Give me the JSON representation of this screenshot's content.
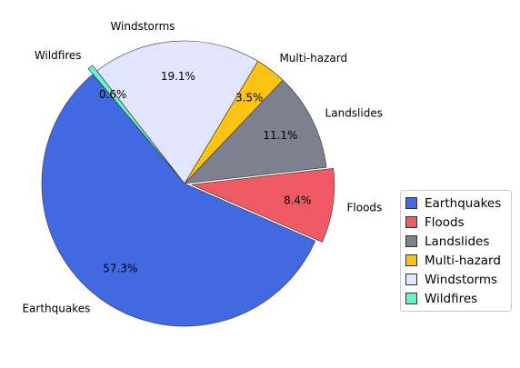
{
  "chart_data": {
    "type": "pie",
    "start_angle_deg": 130,
    "direction": "counterclockwise",
    "slices": [
      {
        "label": "Earthquakes",
        "value": 57.3,
        "pct_label": "57.3%",
        "color": "#4169E1",
        "explode": 0
      },
      {
        "label": "Floods",
        "value": 8.4,
        "pct_label": "8.4%",
        "color": "#F05A64",
        "explode": 0.05
      },
      {
        "label": "Landslides",
        "value": 11.1,
        "pct_label": "11.1%",
        "color": "#7E7F8F",
        "explode": 0
      },
      {
        "label": "Multi-hazard",
        "value": 3.5,
        "pct_label": "3.5%",
        "color": "#FDC312",
        "explode": 0
      },
      {
        "label": "Windstorms",
        "value": 19.1,
        "pct_label": "19.1%",
        "color": "#E1E6FE",
        "explode": 0
      },
      {
        "label": "Wildfires",
        "value": 0.6,
        "pct_label": "0.6%",
        "color": "#66F5C8",
        "explode": 0.05
      }
    ],
    "legend_position": "right"
  }
}
